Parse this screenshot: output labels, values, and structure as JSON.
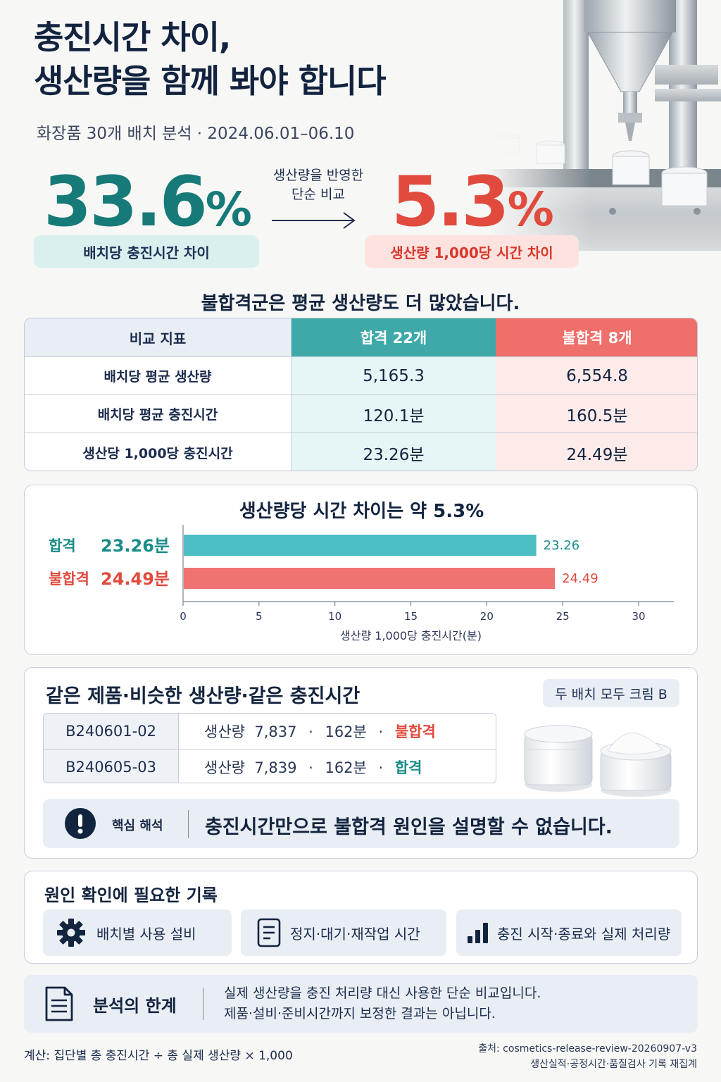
{
  "header": {
    "title_line1": "충진시간 차이,",
    "title_line2": "생산량을 함께 봐야 합니다",
    "subtitle": "화장품 30개 배치 분석 · 2024.06.01–06.10"
  },
  "kpi": {
    "left_value": "33.6",
    "left_unit": "%",
    "left_label": "배치당 충진시간 차이",
    "arrow_note_line1": "생산량을 반영한",
    "arrow_note_line2": "단순 비교",
    "right_value": "5.3",
    "right_unit": "%",
    "right_label": "생산량 1,000당 시간 차이"
  },
  "table": {
    "heading": "불합격군은 평균 생산량도 더 많았습니다.",
    "header": [
      "비교 지표",
      "합격 22개",
      "불합격 8개"
    ],
    "rows": [
      [
        "배치당 평균 생산량",
        "5,165.3",
        "6,554.8"
      ],
      [
        "배치당 평균 충진시간",
        "120.1분",
        "160.5분"
      ],
      [
        "생산당 1,000당 충진시간",
        "23.26분",
        "24.49분"
      ]
    ]
  },
  "chart_data": {
    "type": "bar",
    "orientation": "horizontal",
    "title": "생산량당 시간 차이는 약 5.3%",
    "categories": [
      "합격",
      "불합격"
    ],
    "category_value_labels": [
      "23.26분",
      "24.49분"
    ],
    "values": [
      23.26,
      24.49
    ],
    "data_labels": [
      "23.26",
      "24.49"
    ],
    "xlabel": "생산량 1,000당 충진시간(분)",
    "xlim": [
      0,
      30
    ],
    "xticks": [
      0,
      5,
      10,
      15,
      20,
      25,
      30
    ],
    "colors": [
      "#4cbfc4",
      "#ef7370"
    ],
    "label_colors": [
      "#1a8c8a",
      "#e04b3d"
    ],
    "grid": false
  },
  "batches": {
    "title": "같은 제품·비슷한 생산량·같은 충진시간",
    "note": "두 배치 모두 크림 B",
    "rows": [
      {
        "id": "B240601-02",
        "qty_label": "생산량",
        "qty": "7,837",
        "sep1": "·",
        "time": "162분",
        "sep2": "·",
        "result": "불합격",
        "result_type": "fail"
      },
      {
        "id": "B240605-03",
        "qty_label": "생산량",
        "qty": "7,839",
        "sep1": "·",
        "time": "162분",
        "sep2": "·",
        "result": "합격",
        "result_type": "pass"
      }
    ],
    "insight_label": "핵심 해석",
    "insight_text": "충진시간만으로 불합격 원인을 설명할 수 없습니다."
  },
  "records": {
    "title": "원인 확인에 필요한 기록",
    "items": [
      {
        "icon": "gear-icon",
        "label": "배치별 사용 설비"
      },
      {
        "icon": "document-icon",
        "label": "정지·대기·재작업 시간"
      },
      {
        "icon": "bar-chart-icon",
        "label": "충진 시작·종료와 실제 처리량"
      }
    ]
  },
  "limitation": {
    "label": "분석의 한계",
    "line1": "실제 생산량을 충진 처리량 대신 사용한 단순 비교입니다.",
    "line2": "제품·설비·준비시간까지 보정한 결과는 아닙니다."
  },
  "footer": {
    "formula": "계산: 집단별 총 충진시간 ÷ 총 실제 생산량 × 1,000",
    "source_line1": "출처: cosmetics-release-review-20260907-v3",
    "source_line2": "생산실적·공정시간·품질검사 기록 재집계"
  },
  "colors": {
    "navy": "#13243f",
    "teal": "#167a78",
    "red": "#e04b3d",
    "pass_header": "#3fa9a9",
    "fail_header": "#ef6f6a"
  }
}
